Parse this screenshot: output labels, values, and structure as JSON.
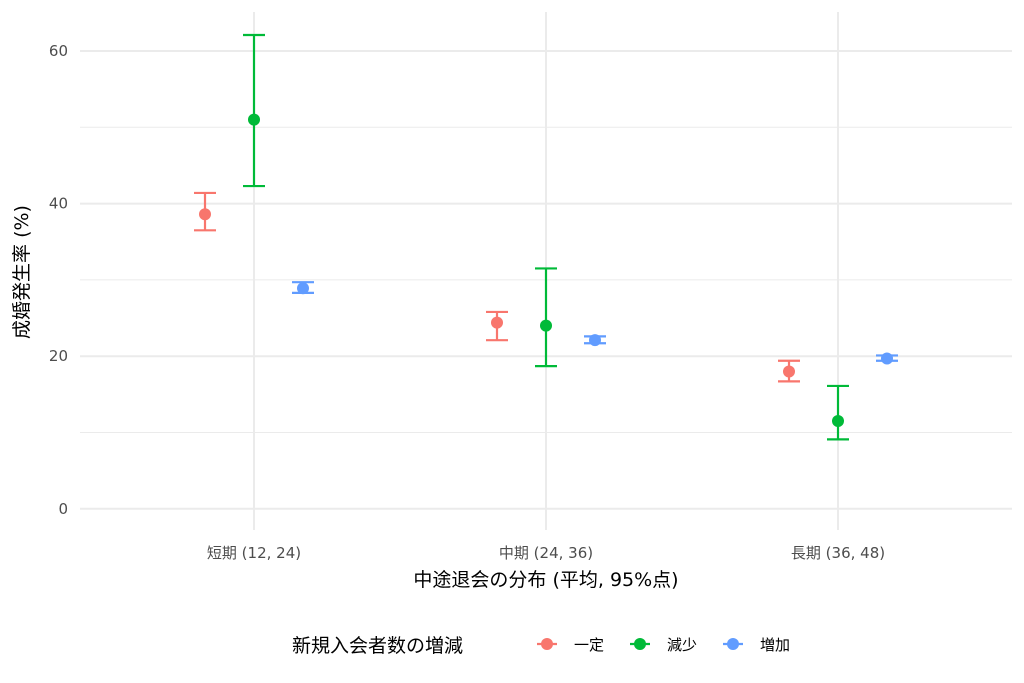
{
  "chart_data": {
    "type": "scatter",
    "subtype": "point-with-errorbars",
    "xlabel": "中途退会の分布 (平均, 95%点)",
    "ylabel": "成婚発生率 (%)",
    "categories": [
      "短期 (12, 24)",
      "中期 (24, 36)",
      "長期 (36, 48)"
    ],
    "ylim": [
      0,
      65
    ],
    "y_ticks": [
      0,
      20,
      40,
      60
    ],
    "grid": true,
    "legend": {
      "title": "新規入会者数の増減",
      "position": "bottom"
    },
    "series": [
      {
        "name": "一定",
        "color": "#F8766D",
        "values": [
          38.6,
          24.4,
          18.0
        ],
        "lower": [
          36.5,
          22.1,
          16.7
        ],
        "upper": [
          41.4,
          25.8,
          19.4
        ]
      },
      {
        "name": "減少",
        "color": "#00BA38",
        "values": [
          51.0,
          24.0,
          11.5
        ],
        "lower": [
          42.3,
          18.7,
          9.1
        ],
        "upper": [
          62.1,
          31.5,
          16.1
        ]
      },
      {
        "name": "増加",
        "color": "#619CFF",
        "values": [
          28.9,
          22.1,
          19.7
        ],
        "lower": [
          28.3,
          21.7,
          19.4
        ],
        "upper": [
          29.7,
          22.6,
          20.1
        ]
      }
    ]
  }
}
